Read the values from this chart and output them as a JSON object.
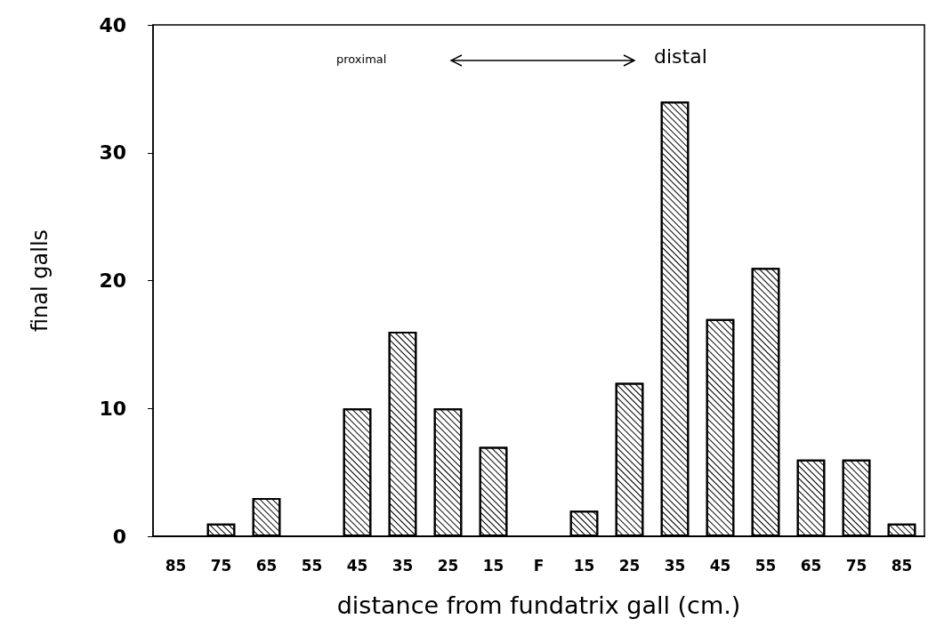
{
  "chart_data": {
    "type": "bar",
    "xlabel": "distance from fundatrix gall (cm.)",
    "ylabel": "final galls",
    "categories": [
      "85",
      "75",
      "65",
      "55",
      "45",
      "35",
      "25",
      "15",
      "F",
      "15",
      "25",
      "35",
      "45",
      "55",
      "65",
      "75",
      "85"
    ],
    "values": [
      0,
      1,
      3,
      0,
      10,
      16,
      10,
      7,
      0,
      2,
      12,
      34,
      17,
      21,
      6,
      6,
      1
    ],
    "color": "#ffffff",
    "ylim": [
      0,
      40
    ],
    "yticks": [
      0,
      10,
      20,
      30,
      40
    ],
    "grid": false,
    "annotations": [
      "proximal",
      "distal"
    ]
  }
}
